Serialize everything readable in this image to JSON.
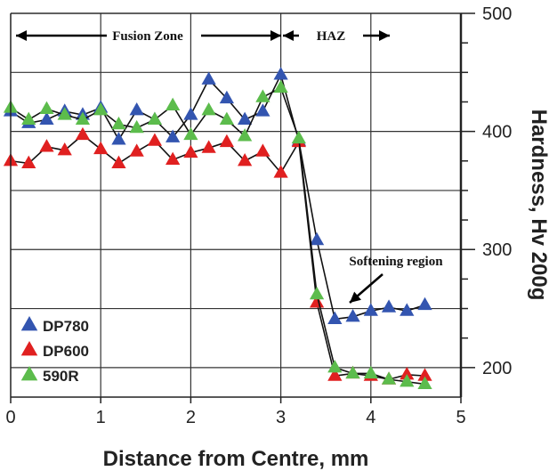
{
  "chart_data": {
    "type": "line",
    "xlabel": "Distance from Centre, mm",
    "ylabel": "Hardness, Hv 200g",
    "xlim": [
      0,
      5
    ],
    "ylim": [
      175,
      500
    ],
    "xticks": [
      "0",
      "1",
      "2",
      "3",
      "4",
      "5"
    ],
    "yticks": [
      "200",
      "300",
      "400",
      "500"
    ],
    "y_axis_side": "right",
    "grid": true,
    "legend_position": "bottom-left",
    "marker": "triangle",
    "annotations": {
      "fusion_zone": "Fusion Zone",
      "haz": "HAZ",
      "softening": "Softening region"
    },
    "series": [
      {
        "name": "DP780",
        "color": "#3355b0",
        "x": [
          0,
          0.2,
          0.4,
          0.6,
          0.8,
          1.0,
          1.2,
          1.4,
          1.6,
          1.8,
          2.0,
          2.2,
          2.4,
          2.6,
          2.8,
          3.0,
          3.2,
          3.4,
          3.6,
          3.8,
          4.0,
          4.2,
          4.4,
          4.6
        ],
        "y": [
          417,
          407,
          410,
          417,
          414,
          420,
          393,
          418,
          410,
          395,
          414,
          444,
          428,
          410,
          417,
          448,
          392,
          308,
          241,
          243,
          248,
          251,
          248,
          253
        ]
      },
      {
        "name": "DP600",
        "color": "#e02020",
        "x": [
          0,
          0.2,
          0.4,
          0.6,
          0.8,
          1.0,
          1.2,
          1.4,
          1.6,
          1.8,
          2.0,
          2.2,
          2.4,
          2.6,
          2.8,
          3.0,
          3.2,
          3.4,
          3.6,
          3.8,
          4.0,
          4.2,
          4.4,
          4.6
        ],
        "y": [
          375,
          373,
          387,
          384,
          397,
          385,
          373,
          383,
          392,
          376,
          382,
          386,
          391,
          375,
          383,
          365,
          391,
          255,
          193,
          195,
          193,
          190,
          194,
          193
        ]
      },
      {
        "name": "590R",
        "color": "#5cbc4c",
        "x": [
          0,
          0.2,
          0.4,
          0.6,
          0.8,
          1.0,
          1.2,
          1.4,
          1.6,
          1.8,
          2.0,
          2.2,
          2.4,
          2.6,
          2.8,
          3.0,
          3.2,
          3.4,
          3.6,
          3.8,
          4.0,
          4.2,
          4.4,
          4.6
        ],
        "y": [
          420,
          410,
          419,
          414,
          410,
          418,
          406,
          403,
          410,
          422,
          397,
          418,
          410,
          396,
          429,
          437,
          394,
          262,
          200,
          195,
          195,
          190,
          188,
          186
        ]
      }
    ]
  }
}
